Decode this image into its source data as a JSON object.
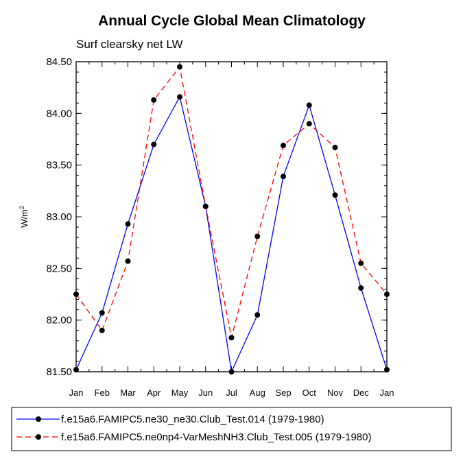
{
  "chart_data": {
    "type": "line",
    "title": "Annual Cycle Global Mean Climatology",
    "subtitle": "Surf clearsky net LW",
    "ylabel": "W/m",
    "ylabel_superscript": "2",
    "xlabel": "",
    "categories": [
      "Jan",
      "Feb",
      "Mar",
      "Apr",
      "May",
      "Jun",
      "Jul",
      "Aug",
      "Sep",
      "Oct",
      "Nov",
      "Dec",
      "Jan"
    ],
    "ylim": [
      81.5,
      84.5
    ],
    "yticks": [
      81.5,
      82.0,
      82.5,
      83.0,
      83.5,
      84.0,
      84.5
    ],
    "ytick_labels": [
      "81.50",
      "82.00",
      "82.50",
      "83.00",
      "83.50",
      "84.00",
      "84.50"
    ],
    "series": [
      {
        "name": "f.e15a6.FAMIPC5.ne30_ne30.Club_Test.014 (1979-1980)",
        "color": "#0000ff",
        "dash": "solid",
        "values": [
          81.52,
          82.07,
          82.93,
          83.7,
          84.16,
          83.1,
          81.5,
          82.05,
          83.39,
          84.08,
          83.21,
          82.31,
          81.52
        ]
      },
      {
        "name": "f.e15a6.FAMIPC5.ne0np4-VarMeshNH3.Club_Test.005 (1979-1980)",
        "color": "#ff0000",
        "dash": "dashed",
        "values": [
          82.25,
          81.9,
          82.57,
          84.13,
          84.45,
          83.1,
          81.83,
          82.81,
          83.69,
          83.9,
          83.67,
          82.55,
          82.25
        ]
      }
    ],
    "legend_position": "bottom"
  }
}
